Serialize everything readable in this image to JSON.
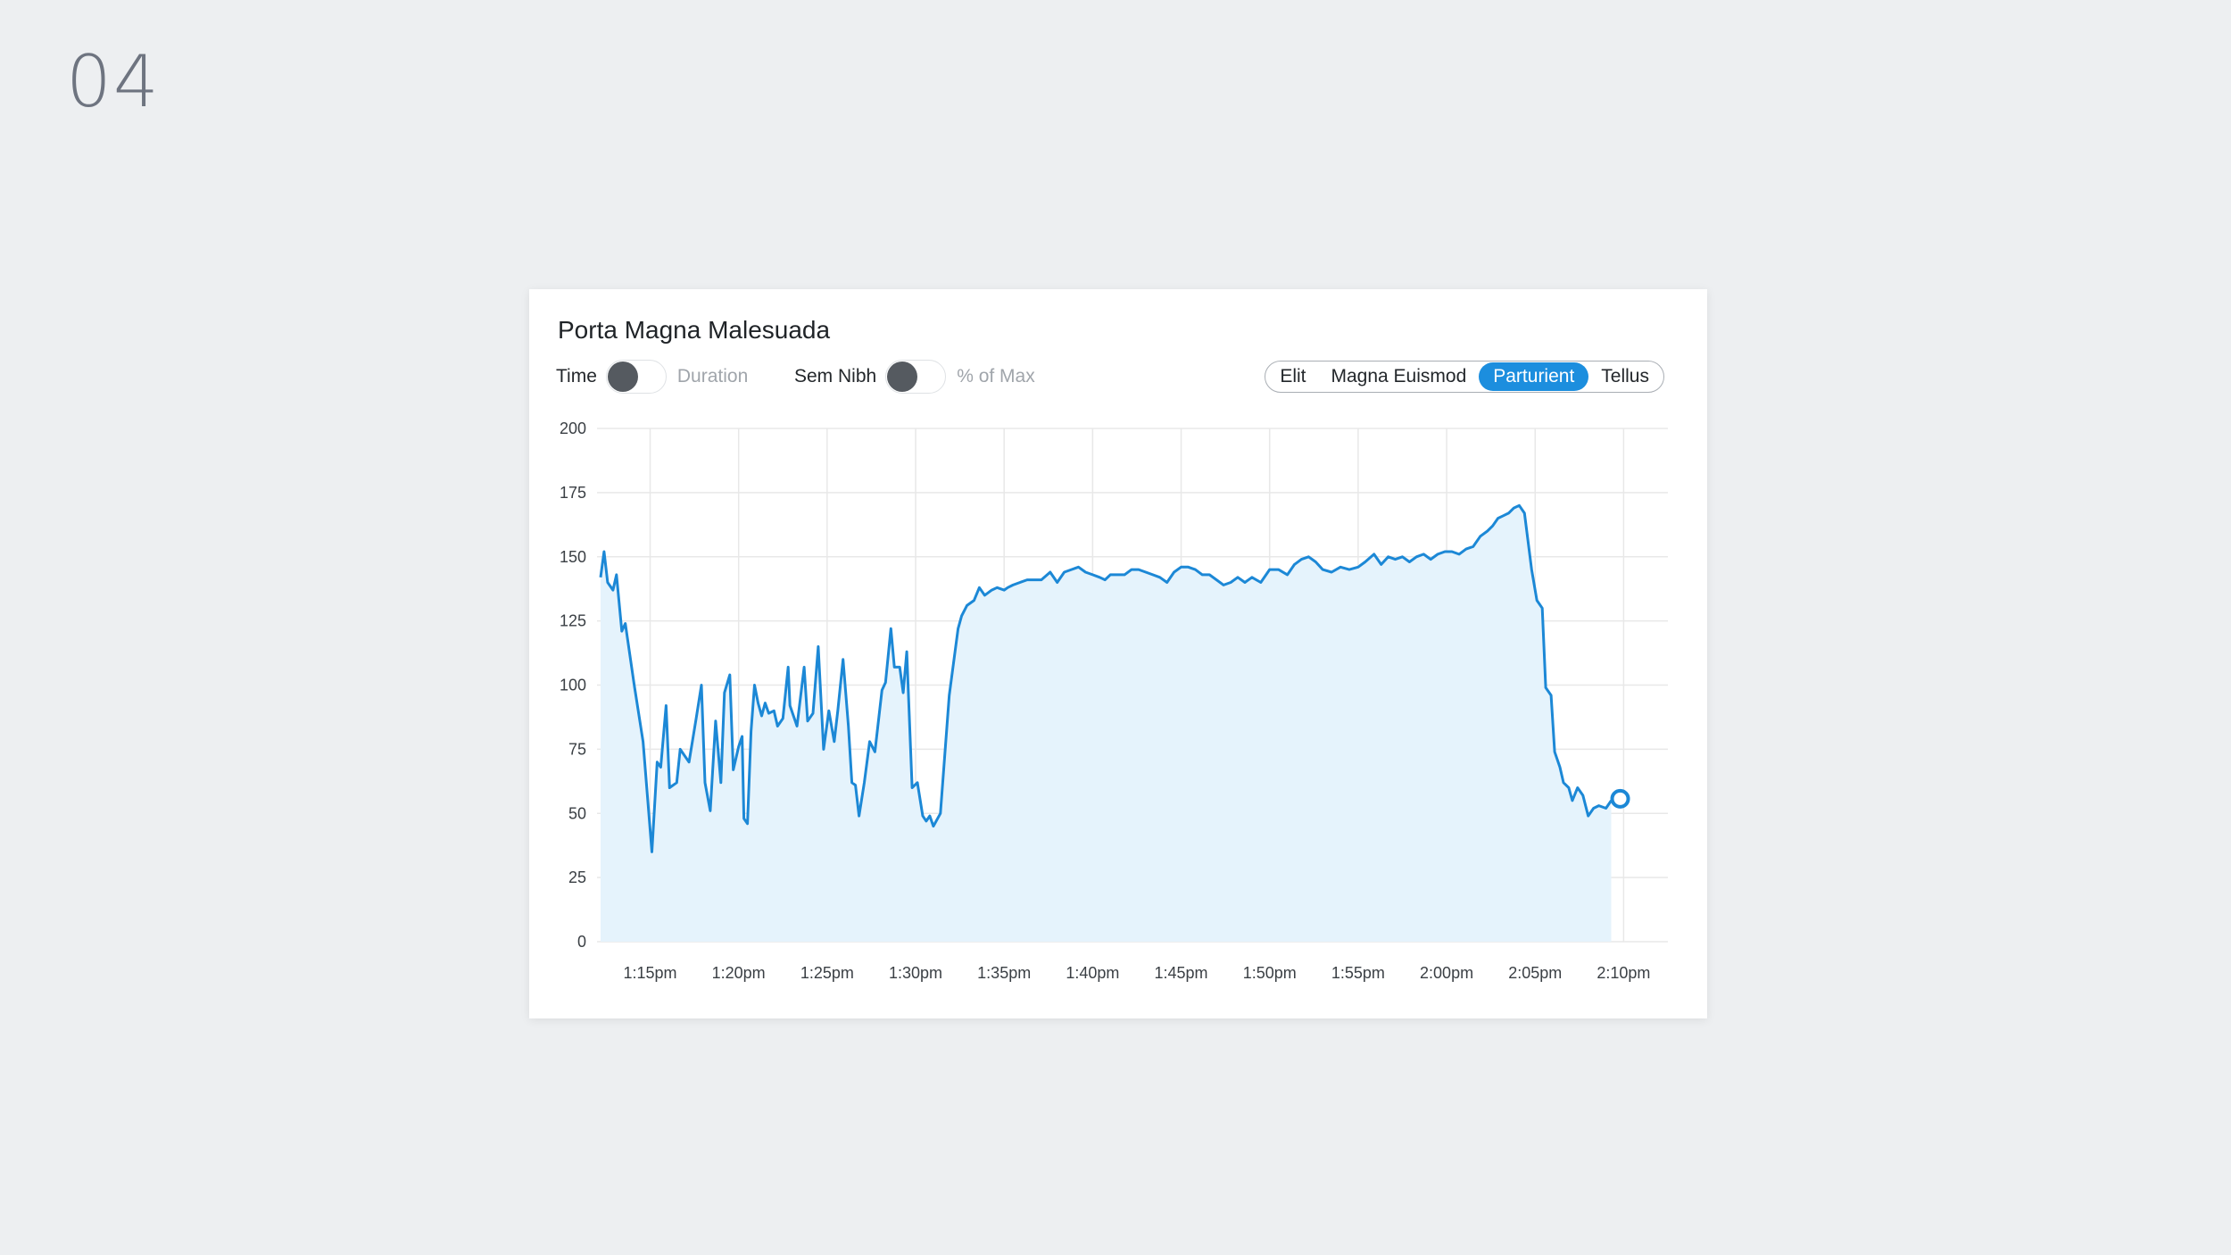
{
  "page_number": "04",
  "card": {
    "title": "Porta Magna Malesuada",
    "toggles": [
      {
        "on_label": "Time",
        "off_label": "Duration"
      },
      {
        "on_label": "Sem Nibh",
        "off_label": "% of Max"
      }
    ],
    "segments": [
      "Elit",
      "Magna Euismod",
      "Parturient",
      "Tellus"
    ],
    "active_segment": "Parturient"
  },
  "colors": {
    "line": "#1c88d6",
    "area": "#e5f3fc",
    "active_segment": "#1c8ede",
    "grid": "#e8e8e8"
  },
  "chart_data": {
    "type": "area",
    "x_unit": "minutes after 1:12pm",
    "x_ticks": [
      {
        "label": "1:15pm",
        "minutes": 3
      },
      {
        "label": "1:20pm",
        "minutes": 8
      },
      {
        "label": "1:25pm",
        "minutes": 13
      },
      {
        "label": "1:30pm",
        "minutes": 18
      },
      {
        "label": "1:35pm",
        "minutes": 23
      },
      {
        "label": "1:40pm",
        "minutes": 28
      },
      {
        "label": "1:45pm",
        "minutes": 33
      },
      {
        "label": "1:50pm",
        "minutes": 38
      },
      {
        "label": "1:55pm",
        "minutes": 43
      },
      {
        "label": "2:00pm",
        "minutes": 48
      },
      {
        "label": "2:05pm",
        "minutes": 53
      },
      {
        "label": "2:10pm",
        "minutes": 58
      }
    ],
    "y_ticks": [
      0,
      25,
      50,
      75,
      100,
      125,
      150,
      175,
      200
    ],
    "ylim": [
      0,
      200
    ],
    "xlim": [
      0,
      60.5
    ],
    "grid": true,
    "points": [
      [
        0.2,
        142
      ],
      [
        0.4,
        152
      ],
      [
        0.6,
        140
      ],
      [
        0.9,
        137
      ],
      [
        1.1,
        143
      ],
      [
        1.4,
        121
      ],
      [
        1.6,
        124
      ],
      [
        2.1,
        100
      ],
      [
        2.6,
        78
      ],
      [
        3.1,
        35
      ],
      [
        3.4,
        70
      ],
      [
        3.6,
        68
      ],
      [
        3.9,
        92
      ],
      [
        4.1,
        60
      ],
      [
        4.5,
        62
      ],
      [
        4.7,
        75
      ],
      [
        5.2,
        70
      ],
      [
        5.6,
        87
      ],
      [
        5.9,
        100
      ],
      [
        6.1,
        62
      ],
      [
        6.4,
        51
      ],
      [
        6.7,
        86
      ],
      [
        7.0,
        62
      ],
      [
        7.2,
        97
      ],
      [
        7.5,
        104
      ],
      [
        7.7,
        67
      ],
      [
        8.0,
        76
      ],
      [
        8.2,
        80
      ],
      [
        8.3,
        48
      ],
      [
        8.5,
        46
      ],
      [
        8.7,
        82
      ],
      [
        8.9,
        100
      ],
      [
        9.1,
        93
      ],
      [
        9.3,
        88
      ],
      [
        9.5,
        93
      ],
      [
        9.7,
        89
      ],
      [
        10.0,
        90
      ],
      [
        10.2,
        84
      ],
      [
        10.5,
        87
      ],
      [
        10.8,
        107
      ],
      [
        10.9,
        92
      ],
      [
        11.3,
        84
      ],
      [
        11.7,
        107
      ],
      [
        11.9,
        86
      ],
      [
        12.2,
        89
      ],
      [
        12.5,
        115
      ],
      [
        12.8,
        75
      ],
      [
        13.1,
        90
      ],
      [
        13.4,
        78
      ],
      [
        13.6,
        90
      ],
      [
        13.9,
        110
      ],
      [
        14.2,
        84
      ],
      [
        14.4,
        62
      ],
      [
        14.6,
        61
      ],
      [
        14.8,
        49
      ],
      [
        15.1,
        62
      ],
      [
        15.4,
        78
      ],
      [
        15.7,
        74
      ],
      [
        16.1,
        98
      ],
      [
        16.3,
        101
      ],
      [
        16.6,
        122
      ],
      [
        16.8,
        107
      ],
      [
        17.1,
        107
      ],
      [
        17.3,
        97
      ],
      [
        17.5,
        113
      ],
      [
        17.8,
        60
      ],
      [
        18.1,
        62
      ],
      [
        18.4,
        49
      ],
      [
        18.6,
        47
      ],
      [
        18.8,
        49
      ],
      [
        19.0,
        45
      ],
      [
        19.4,
        50
      ],
      [
        19.9,
        96
      ],
      [
        20.4,
        122
      ],
      [
        20.6,
        127
      ],
      [
        20.9,
        131
      ],
      [
        21.3,
        133
      ],
      [
        21.6,
        138
      ],
      [
        21.9,
        135
      ],
      [
        22.3,
        137
      ],
      [
        22.6,
        138
      ],
      [
        23.0,
        137
      ],
      [
        23.2,
        138
      ],
      [
        23.5,
        139
      ],
      [
        23.9,
        140
      ],
      [
        24.3,
        141
      ],
      [
        24.7,
        141
      ],
      [
        25.1,
        141
      ],
      [
        25.6,
        144
      ],
      [
        26.0,
        140
      ],
      [
        26.4,
        144
      ],
      [
        26.8,
        145
      ],
      [
        27.2,
        146
      ],
      [
        27.6,
        144
      ],
      [
        28.0,
        143
      ],
      [
        28.4,
        142
      ],
      [
        28.7,
        141
      ],
      [
        29.0,
        143
      ],
      [
        29.4,
        143
      ],
      [
        29.8,
        143
      ],
      [
        30.2,
        145
      ],
      [
        30.6,
        145
      ],
      [
        31.0,
        144
      ],
      [
        31.4,
        143
      ],
      [
        31.8,
        142
      ],
      [
        32.2,
        140
      ],
      [
        32.6,
        144
      ],
      [
        33.0,
        146
      ],
      [
        33.4,
        146
      ],
      [
        33.8,
        145
      ],
      [
        34.2,
        143
      ],
      [
        34.6,
        143
      ],
      [
        35.0,
        141
      ],
      [
        35.4,
        139
      ],
      [
        35.8,
        140
      ],
      [
        36.2,
        142
      ],
      [
        36.6,
        140
      ],
      [
        37.0,
        142
      ],
      [
        37.5,
        140
      ],
      [
        38.0,
        145
      ],
      [
        38.5,
        145
      ],
      [
        39.0,
        143
      ],
      [
        39.4,
        147
      ],
      [
        39.8,
        149
      ],
      [
        40.2,
        150
      ],
      [
        40.6,
        148
      ],
      [
        41.0,
        145
      ],
      [
        41.5,
        144
      ],
      [
        42.0,
        146
      ],
      [
        42.5,
        145
      ],
      [
        43.0,
        146
      ],
      [
        43.4,
        148
      ],
      [
        43.9,
        151
      ],
      [
        44.3,
        147
      ],
      [
        44.7,
        150
      ],
      [
        45.1,
        149
      ],
      [
        45.5,
        150
      ],
      [
        45.9,
        148
      ],
      [
        46.3,
        150
      ],
      [
        46.7,
        151
      ],
      [
        47.1,
        149
      ],
      [
        47.5,
        151
      ],
      [
        47.9,
        152
      ],
      [
        48.3,
        152
      ],
      [
        48.7,
        151
      ],
      [
        49.1,
        153
      ],
      [
        49.5,
        154
      ],
      [
        49.9,
        158
      ],
      [
        50.3,
        160
      ],
      [
        50.6,
        162
      ],
      [
        50.9,
        165
      ],
      [
        51.2,
        166
      ],
      [
        51.5,
        167
      ],
      [
        51.8,
        169
      ],
      [
        52.1,
        170
      ],
      [
        52.4,
        167
      ],
      [
        52.8,
        145
      ],
      [
        53.1,
        133
      ],
      [
        53.4,
        130
      ],
      [
        53.6,
        99
      ],
      [
        53.9,
        96
      ],
      [
        54.1,
        74
      ],
      [
        54.4,
        68
      ],
      [
        54.6,
        62
      ],
      [
        54.9,
        60
      ],
      [
        55.1,
        55
      ],
      [
        55.4,
        60
      ],
      [
        55.7,
        57
      ],
      [
        56.0,
        49
      ],
      [
        56.3,
        52
      ],
      [
        56.6,
        53
      ],
      [
        57.0,
        52
      ],
      [
        57.3,
        55
      ]
    ],
    "last_point_marker": true
  }
}
